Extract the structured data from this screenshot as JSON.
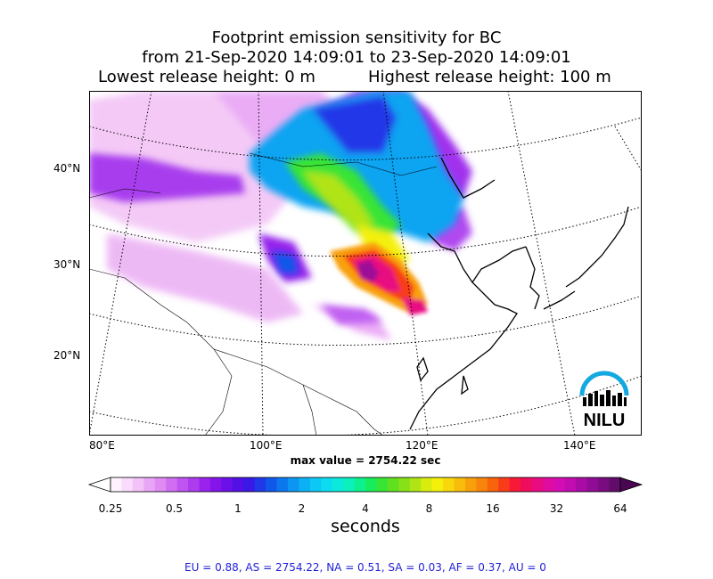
{
  "title": {
    "line1": "Footprint emission sensitivity for BC",
    "line2": "from 21-Sep-2020 14:09:01 to 23-Sep-2020 14:09:01",
    "lowest": "Lowest release height: 0 m",
    "highest": "Highest release height: 100 m"
  },
  "map": {
    "lat_labels": [
      "40°N",
      "30°N",
      "20°N"
    ],
    "lon_labels": [
      "80°E",
      "100°E",
      "120°E",
      "140°E"
    ],
    "max_value": "max value = 2754.22 sec"
  },
  "colorbar": {
    "labels": [
      "0.25",
      "0.5",
      "1",
      "2",
      "4",
      "8",
      "16",
      "32",
      "64"
    ],
    "unit": "seconds",
    "colors": [
      "#fdf2fd",
      "#f9dcfb",
      "#f3c2f8",
      "#eaa6f6",
      "#e08af4",
      "#d06ef2",
      "#bf54f0",
      "#ad3cee",
      "#9a22ec",
      "#8414ea",
      "#6b10e8",
      "#5210e6",
      "#3a18e6",
      "#2038e8",
      "#1058ea",
      "#0c78ee",
      "#0c96f2",
      "#0cb0f4",
      "#0cc8f4",
      "#0cdcf0",
      "#0ce8dc",
      "#0cf0bc",
      "#0cf090",
      "#18ec5c",
      "#38e434",
      "#60e020",
      "#88e018",
      "#b0e414",
      "#d8ec10",
      "#f4f00c",
      "#f8d80c",
      "#f8bc0c",
      "#f8a00c",
      "#f8840c",
      "#f8640c",
      "#f83c18",
      "#f81838",
      "#f00c5c",
      "#e80c80",
      "#e00ca0",
      "#d40cb4",
      "#c00cb0",
      "#a80ca4",
      "#900c94",
      "#780c80",
      "#600c68"
    ],
    "low_end": "#ffffff",
    "high_end": "#4a0650"
  },
  "logo": {
    "text": "NILU",
    "color": "#14a8e0"
  },
  "stats": "EU = 0.88,  AS = 2754.22,  NA = 0.51,  SA = 0.03,  AF = 0.37,  AU = 0"
}
